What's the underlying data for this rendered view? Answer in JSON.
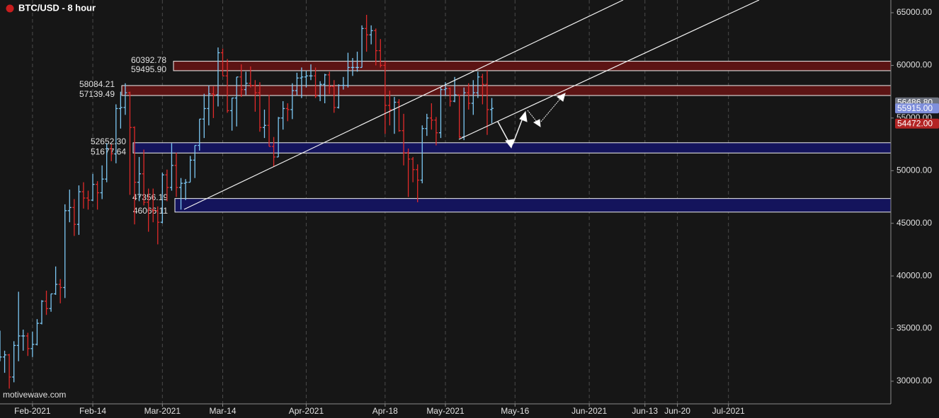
{
  "chart_data": {
    "type": "ohlc",
    "title": "BTC/USD - 8 hour",
    "watermark": "motivewave.com",
    "up_color": "#7cc8f4",
    "down_color": "#e02a2a",
    "xlim": [
      25,
      217
    ],
    "ylim": [
      27850,
      66210
    ],
    "xticks": [
      {
        "value": 32,
        "label": "Feb-2021"
      },
      {
        "value": 45,
        "label": "Feb-14"
      },
      {
        "value": 60,
        "label": "Mar-2021"
      },
      {
        "value": 73,
        "label": "Mar-14"
      },
      {
        "value": 91,
        "label": "Apr-2021"
      },
      {
        "value": 108,
        "label": "Apr-18"
      },
      {
        "value": 121,
        "label": "May-2021"
      },
      {
        "value": 136,
        "label": "May-16"
      },
      {
        "value": 152,
        "label": "Jun-2021"
      },
      {
        "value": 164,
        "label": "Jun-13"
      },
      {
        "value": 171,
        "label": "Jun-20"
      },
      {
        "value": 182,
        "label": "Jul-2021"
      }
    ],
    "yticks": [
      {
        "value": 30000,
        "label": "30000.00"
      },
      {
        "value": 35000,
        "label": "35000.00"
      },
      {
        "value": 40000,
        "label": "40000.00"
      },
      {
        "value": 45000,
        "label": "45000.00"
      },
      {
        "value": 50000,
        "label": "50000.00"
      },
      {
        "value": 55000,
        "label": "55000.00"
      },
      {
        "value": 60000,
        "label": "60000.00"
      },
      {
        "value": 65000,
        "label": "65000.00"
      }
    ],
    "grid": true,
    "zones": [
      {
        "top": 60392.78,
        "bottom": {
          "value": 59495.9,
          "label": "59495.90"
        },
        "color": "#5c1414"
      },
      {
        "top": 58084.21,
        "bottom": 57139.49,
        "color": "#5c1414"
      },
      {
        "top": {
          "value": 52652.3,
          "label": "52652.30"
        },
        "bottom": 51677.64,
        "color": "#14145c"
      },
      {
        "top": 47356.19,
        "bottom": 46066.11,
        "color": "#14145c"
      }
    ],
    "price_markers": [
      {
        "value": 56486.8,
        "label": "56486.80",
        "color": "#6e7380"
      },
      {
        "value": 55915,
        "label": "55915.00",
        "color": "#7f8fdc"
      },
      {
        "value": 54472,
        "label": "54472.00",
        "color": "#b32424"
      }
    ],
    "x": [
      25,
      26,
      27,
      28,
      29,
      30,
      31,
      32,
      33,
      34,
      35,
      36,
      37,
      38,
      39,
      40,
      41,
      42,
      43,
      44,
      45,
      46,
      47,
      48,
      49,
      50,
      51,
      52,
      53,
      54,
      55,
      56,
      57,
      58,
      59,
      60,
      61,
      62,
      63,
      64,
      65,
      66,
      67,
      68,
      69,
      70,
      71,
      72,
      73,
      74,
      75,
      76,
      77,
      78,
      79,
      80,
      81,
      82,
      83,
      84,
      85,
      86,
      87,
      88,
      89,
      90,
      91,
      92,
      93,
      94,
      95,
      96,
      97,
      98,
      99,
      100,
      101,
      102,
      103,
      104,
      105,
      106,
      107,
      108,
      109,
      110,
      111,
      112,
      113,
      114,
      115,
      116,
      117,
      118,
      119,
      120,
      121,
      122,
      123,
      124,
      125,
      126,
      127,
      128,
      129,
      130,
      131
    ],
    "ohlc": [
      [
        32100,
        34800,
        31900,
        32300
      ],
      [
        32300,
        32900,
        30800,
        32500
      ],
      [
        32500,
        32600,
        29300,
        30400
      ],
      [
        30400,
        33800,
        29900,
        33400
      ],
      [
        33400,
        38500,
        31900,
        34300
      ],
      [
        34300,
        34900,
        32900,
        34300
      ],
      [
        34300,
        34600,
        32400,
        33100
      ],
      [
        33100,
        34700,
        32300,
        33500
      ],
      [
        33500,
        35900,
        33400,
        35500
      ],
      [
        35500,
        37700,
        35400,
        37600
      ],
      [
        37600,
        38600,
        36300,
        36900
      ],
      [
        36900,
        38300,
        36600,
        38300
      ],
      [
        38300,
        40900,
        38200,
        39200
      ],
      [
        39200,
        39700,
        37400,
        38900
      ],
      [
        38900,
        46800,
        37900,
        46200
      ],
      [
        46200,
        48200,
        45100,
        46500
      ],
      [
        46500,
        47300,
        43800,
        44900
      ],
      [
        44900,
        48600,
        43900,
        48000
      ],
      [
        48000,
        48900,
        46400,
        47400
      ],
      [
        47400,
        48100,
        46300,
        47200
      ],
      [
        47200,
        49700,
        47100,
        48700
      ],
      [
        48700,
        49000,
        46300,
        47900
      ],
      [
        47900,
        50500,
        47300,
        49200
      ],
      [
        49200,
        52600,
        48900,
        52100
      ],
      [
        52100,
        52500,
        50900,
        51600
      ],
      [
        51600,
        56300,
        50700,
        55900
      ],
      [
        55900,
        57500,
        54000,
        56000
      ],
      [
        56000,
        58300,
        55300,
        57400
      ],
      [
        57400,
        57500,
        47700,
        54100
      ],
      [
        54100,
        54200,
        44900,
        48900
      ],
      [
        48900,
        51300,
        47100,
        49700
      ],
      [
        49700,
        52000,
        46700,
        47000
      ],
      [
        47000,
        48300,
        44200,
        46300
      ],
      [
        46300,
        48300,
        45100,
        46200
      ],
      [
        46200,
        46600,
        43000,
        45100
      ],
      [
        45100,
        49800,
        45000,
        49600
      ],
      [
        49600,
        50100,
        47100,
        48400
      ],
      [
        48400,
        52600,
        48100,
        50500
      ],
      [
        50500,
        51700,
        47500,
        48400
      ],
      [
        48400,
        49300,
        46300,
        48800
      ],
      [
        48800,
        49200,
        47200,
        48900
      ],
      [
        48900,
        51400,
        48900,
        51000
      ],
      [
        51000,
        52400,
        49300,
        52400
      ],
      [
        52400,
        54900,
        51900,
        54900
      ],
      [
        54900,
        57300,
        53100,
        55900
      ],
      [
        55900,
        58100,
        54300,
        57300
      ],
      [
        57300,
        58000,
        55000,
        57200
      ],
      [
        57200,
        61700,
        56100,
        61200
      ],
      [
        61200,
        61600,
        59000,
        59000
      ],
      [
        59000,
        60600,
        55500,
        55700
      ],
      [
        55700,
        56900,
        53800,
        56900
      ],
      [
        56900,
        58900,
        54200,
        58900
      ],
      [
        58900,
        60100,
        57000,
        57700
      ],
      [
        57700,
        59400,
        57200,
        58300
      ],
      [
        58300,
        59900,
        57900,
        58100
      ],
      [
        58100,
        58600,
        55600,
        57400
      ],
      [
        57400,
        58400,
        53700,
        54100
      ],
      [
        54100,
        55800,
        53100,
        54300
      ],
      [
        54300,
        57200,
        52300,
        52300
      ],
      [
        52300,
        53200,
        50400,
        51300
      ],
      [
        51300,
        55100,
        51300,
        55000
      ],
      [
        55000,
        56600,
        53900,
        55900
      ],
      [
        55900,
        56400,
        54700,
        55800
      ],
      [
        55800,
        58300,
        54900,
        57600
      ],
      [
        57600,
        59300,
        57100,
        58800
      ],
      [
        58800,
        59800,
        56900,
        58900
      ],
      [
        58900,
        59500,
        57900,
        59000
      ],
      [
        59000,
        60100,
        58600,
        59000
      ],
      [
        59000,
        59800,
        56900,
        57100
      ],
      [
        57100,
        58500,
        56600,
        58200
      ],
      [
        58200,
        59200,
        56400,
        59100
      ],
      [
        59100,
        59400,
        57300,
        58000
      ],
      [
        58000,
        58600,
        55500,
        56000
      ],
      [
        56000,
        58200,
        55900,
        58100
      ],
      [
        58100,
        58900,
        57700,
        58100
      ],
      [
        58100,
        61200,
        57900,
        59800
      ],
      [
        59800,
        60700,
        59000,
        59800
      ],
      [
        59800,
        61300,
        59400,
        59800
      ],
      [
        59800,
        63800,
        59800,
        63500
      ],
      [
        63500,
        64800,
        61300,
        62900
      ],
      [
        62900,
        63800,
        62000,
        63300
      ],
      [
        63300,
        63500,
        60000,
        61400
      ],
      [
        61400,
        62500,
        59800,
        60000
      ],
      [
        60000,
        60400,
        53500,
        56200
      ],
      [
        56200,
        57600,
        54300,
        55800
      ],
      [
        55800,
        57000,
        53500,
        56500
      ],
      [
        56500,
        56800,
        53700,
        53800
      ],
      [
        53800,
        55400,
        50500,
        51700
      ],
      [
        51700,
        52100,
        47500,
        51100
      ],
      [
        51100,
        51300,
        48900,
        50100
      ],
      [
        50100,
        50600,
        47000,
        49100
      ],
      [
        49100,
        54300,
        48800,
        54000
      ],
      [
        54000,
        55400,
        53300,
        55000
      ],
      [
        55000,
        56400,
        53900,
        54800
      ],
      [
        54800,
        55100,
        52400,
        53600
      ],
      [
        53600,
        57900,
        53100,
        57700
      ],
      [
        57700,
        58400,
        57100,
        57800
      ],
      [
        57800,
        57900,
        56100,
        56600
      ],
      [
        56600,
        58900,
        56500,
        57200
      ],
      [
        57200,
        57200,
        53100,
        53200
      ],
      [
        53200,
        57900,
        52900,
        57400
      ],
      [
        57400,
        58300,
        55800,
        56400
      ],
      [
        56400,
        58600,
        55300,
        57400
      ],
      [
        57400,
        59400,
        56900,
        58900
      ],
      [
        58900,
        59200,
        56300,
        58200
      ],
      [
        58200,
        59500,
        53400,
        55800
      ],
      [
        55800,
        56900,
        54500,
        55915
      ]
    ]
  }
}
